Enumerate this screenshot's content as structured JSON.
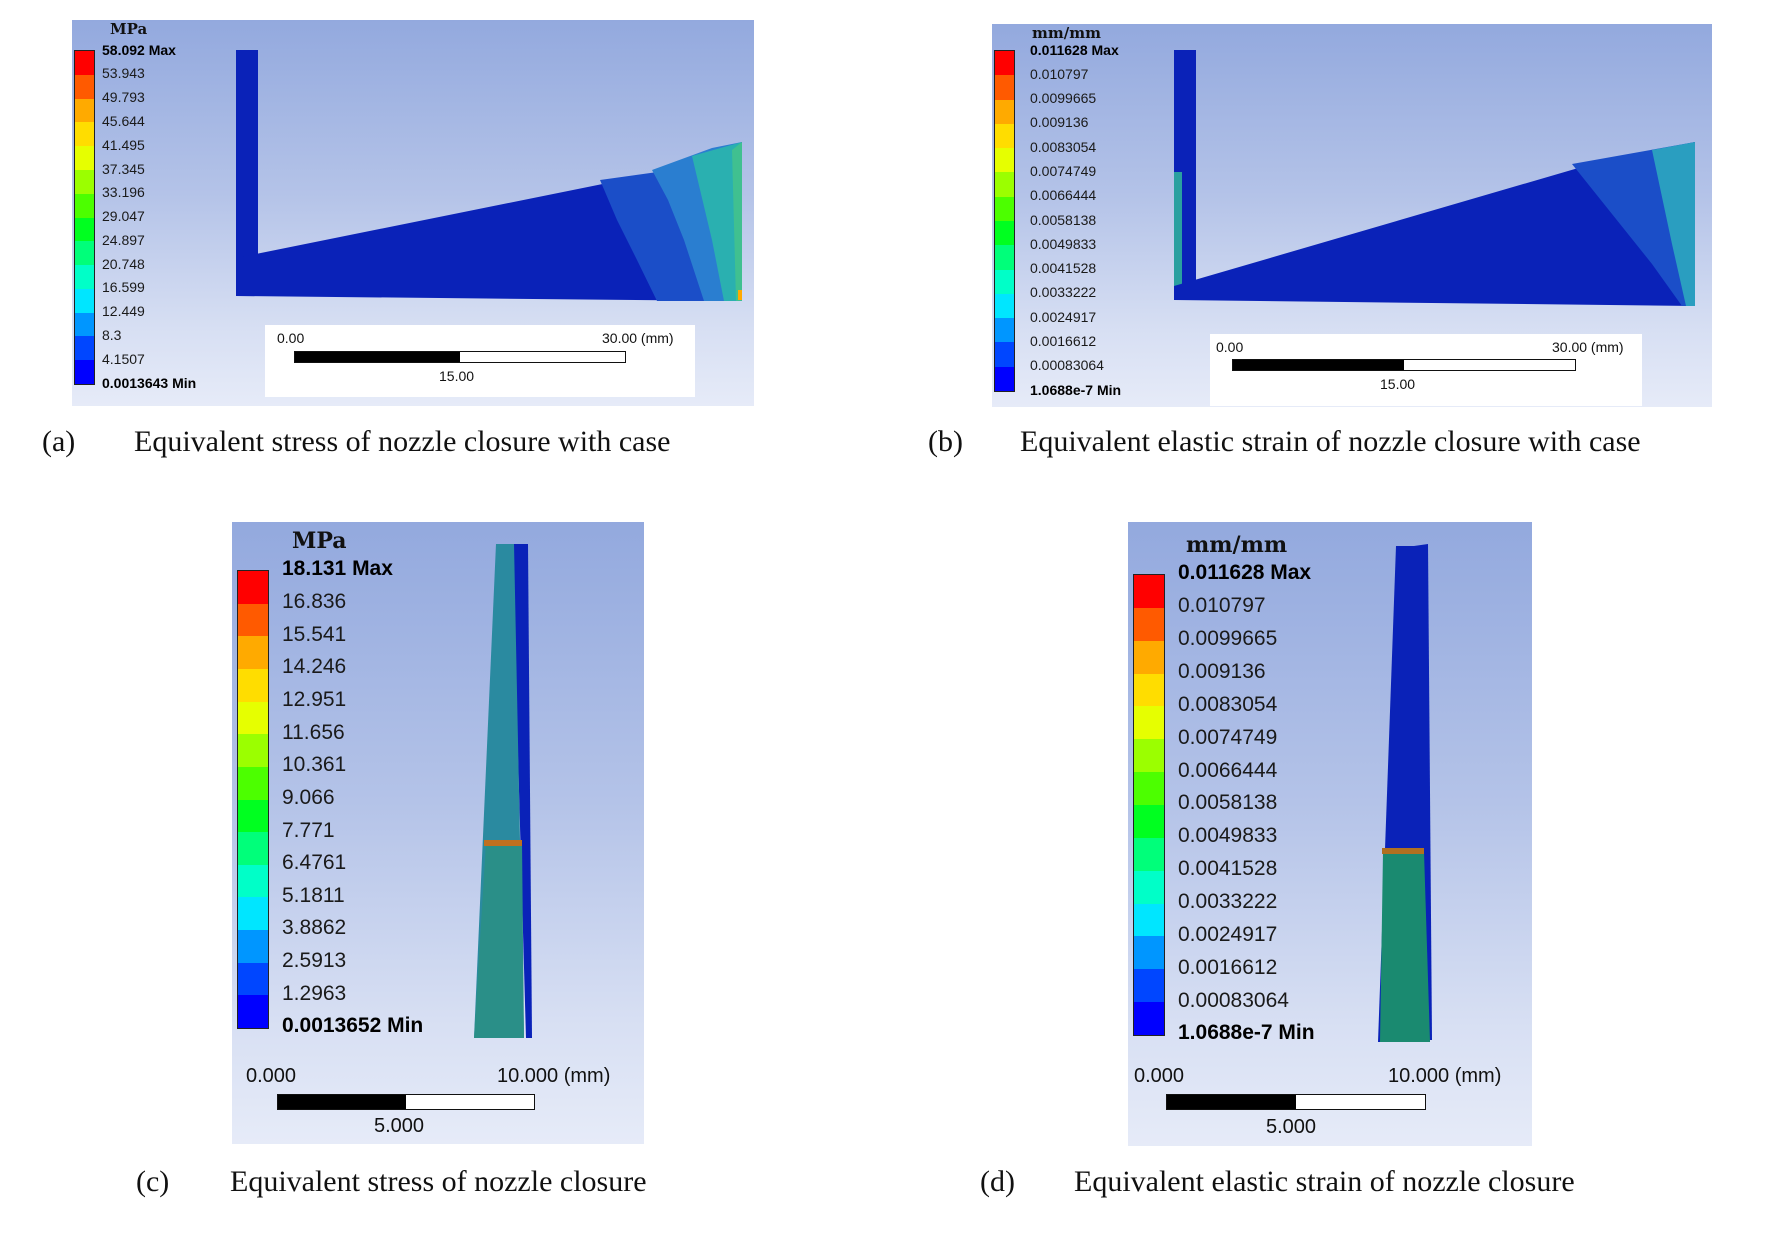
{
  "figures": [
    {
      "id": "a",
      "unit": "MPa",
      "legend_labels": [
        "58.092 Max",
        "53.943",
        "49.793",
        "45.644",
        "41.495",
        "37.345",
        "33.196",
        "29.047",
        "24.897",
        "20.748",
        "16.599",
        "12.449",
        "8.3",
        "4.1507",
        "0.0013643 Min"
      ],
      "scale": {
        "left": "0.00",
        "right": "30.00 (mm)",
        "mid": "15.00"
      },
      "caption_label": "(a)",
      "caption_text": "Equivalent stress of nozzle closure with case"
    },
    {
      "id": "b",
      "unit": "mm/mm",
      "legend_labels": [
        "0.011628 Max",
        "0.010797",
        "0.0099665",
        "0.009136",
        "0.0083054",
        "0.0074749",
        "0.0066444",
        "0.0058138",
        "0.0049833",
        "0.0041528",
        "0.0033222",
        "0.0024917",
        "0.0016612",
        "0.00083064",
        "1.0688e-7 Min"
      ],
      "scale": {
        "left": "0.00",
        "right": "30.00 (mm)",
        "mid": "15.00"
      },
      "caption_label": "(b)",
      "caption_text": "Equivalent elastic strain of nozzle closure with case"
    },
    {
      "id": "c",
      "unit": "MPa",
      "legend_labels": [
        "18.131 Max",
        "16.836",
        "15.541",
        "14.246",
        "12.951",
        "11.656",
        "10.361",
        "9.066",
        "7.771",
        "6.4761",
        "5.1811",
        "3.8862",
        "2.5913",
        "1.2963",
        "0.0013652 Min"
      ],
      "scale": {
        "left": "0.000",
        "right": "10.000 (mm)",
        "mid": "5.000"
      },
      "caption_label": "(c)",
      "caption_text": "Equivalent stress of nozzle closure"
    },
    {
      "id": "d",
      "unit": "mm/mm",
      "legend_labels": [
        "0.011628 Max",
        "0.010797",
        "0.0099665",
        "0.009136",
        "0.0083054",
        "0.0074749",
        "0.0066444",
        "0.0058138",
        "0.0049833",
        "0.0041528",
        "0.0033222",
        "0.0024917",
        "0.0016612",
        "0.00083064",
        "1.0688e-7 Min"
      ],
      "scale": {
        "left": "0.000",
        "right": "10.000 (mm)",
        "mid": "5.000"
      },
      "caption_label": "(d)",
      "caption_text": "Equivalent elastic strain of nozzle closure"
    }
  ],
  "legend_colors": [
    "#ff0000",
    "#ff5a00",
    "#ffaa00",
    "#ffdd00",
    "#e6ff00",
    "#9bff00",
    "#4cff00",
    "#00ff20",
    "#00ff7a",
    "#00ffc8",
    "#00e6ff",
    "#0096ff",
    "#0046ff",
    "#0000ff"
  ]
}
